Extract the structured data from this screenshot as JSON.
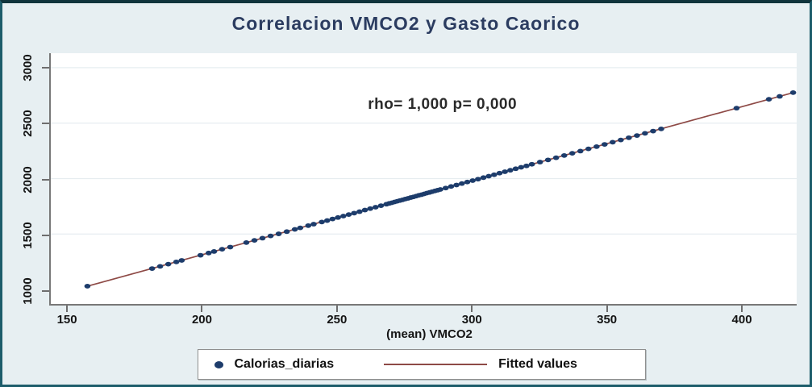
{
  "title": "Correlacion VMCO2 y Gasto Caorico",
  "chart_data": {
    "type": "scatter",
    "title": "Correlacion VMCO2 y Gasto Caorico",
    "annotation": "rho= 1,000 p= 0,000",
    "xlabel": "(mean) VMCO2",
    "ylabel": "",
    "x_ticks": [
      150,
      200,
      250,
      300,
      350,
      400
    ],
    "y_ticks": [
      1000,
      1500,
      2000,
      2500,
      3000
    ],
    "x_domain": [
      143.4,
      420.3
    ],
    "y_domain": [
      870,
      3130
    ],
    "grid": "horizontal",
    "legend_position": "bottom",
    "series": [
      {
        "name": "Calorias_diarias",
        "kind": "scatter",
        "marker": "circle",
        "color": "#1d3c6b",
        "points": [
          [
            157,
            1030
          ],
          [
            181,
            1189
          ],
          [
            184,
            1209
          ],
          [
            187,
            1229
          ],
          [
            190,
            1249
          ],
          [
            192,
            1263
          ],
          [
            199,
            1309
          ],
          [
            202,
            1329
          ],
          [
            204,
            1343
          ],
          [
            207,
            1363
          ],
          [
            210,
            1383
          ],
          [
            216,
            1423
          ],
          [
            219,
            1443
          ],
          [
            222,
            1463
          ],
          [
            225,
            1483
          ],
          [
            228,
            1502
          ],
          [
            231,
            1522
          ],
          [
            234,
            1542
          ],
          [
            236,
            1556
          ],
          [
            239,
            1576
          ],
          [
            241,
            1589
          ],
          [
            244,
            1609
          ],
          [
            246,
            1622
          ],
          [
            248,
            1636
          ],
          [
            250,
            1649
          ],
          [
            252,
            1662
          ],
          [
            254,
            1676
          ],
          [
            256,
            1689
          ],
          [
            258,
            1702
          ],
          [
            260,
            1716
          ],
          [
            262,
            1729
          ],
          [
            264,
            1742
          ],
          [
            266,
            1756
          ],
          [
            268,
            1769
          ],
          [
            269,
            1776
          ],
          [
            270,
            1782
          ],
          [
            271,
            1789
          ],
          [
            272,
            1796
          ],
          [
            273,
            1802
          ],
          [
            274,
            1809
          ],
          [
            275,
            1816
          ],
          [
            276,
            1822
          ],
          [
            277,
            1829
          ],
          [
            278,
            1835
          ],
          [
            279,
            1842
          ],
          [
            280,
            1849
          ],
          [
            281,
            1855
          ],
          [
            282,
            1862
          ],
          [
            283,
            1869
          ],
          [
            284,
            1875
          ],
          [
            285,
            1882
          ],
          [
            286,
            1889
          ],
          [
            287,
            1895
          ],
          [
            288,
            1902
          ],
          [
            290,
            1915
          ],
          [
            292,
            1929
          ],
          [
            294,
            1942
          ],
          [
            296,
            1955
          ],
          [
            298,
            1969
          ],
          [
            300,
            1982
          ],
          [
            302,
            1995
          ],
          [
            304,
            2009
          ],
          [
            306,
            2022
          ],
          [
            308,
            2035
          ],
          [
            310,
            2049
          ],
          [
            312,
            2062
          ],
          [
            314,
            2075
          ],
          [
            316,
            2089
          ],
          [
            318,
            2102
          ],
          [
            320,
            2115
          ],
          [
            322,
            2129
          ],
          [
            325,
            2149
          ],
          [
            328,
            2168
          ],
          [
            331,
            2188
          ],
          [
            334,
            2208
          ],
          [
            337,
            2228
          ],
          [
            340,
            2248
          ],
          [
            343,
            2268
          ],
          [
            346,
            2288
          ],
          [
            349,
            2308
          ],
          [
            352,
            2328
          ],
          [
            355,
            2348
          ],
          [
            358,
            2368
          ],
          [
            361,
            2388
          ],
          [
            364,
            2408
          ],
          [
            367,
            2428
          ],
          [
            370,
            2448
          ],
          [
            398,
            2635
          ],
          [
            410,
            2715
          ],
          [
            414,
            2741
          ],
          [
            419,
            2775
          ]
        ]
      },
      {
        "name": "Fitted values",
        "kind": "line",
        "color": "#8e4a46",
        "points": [
          [
            157,
            1030
          ],
          [
            419,
            2775
          ]
        ]
      }
    ]
  },
  "colors": {
    "background": "#e7eff2",
    "frame_border": "#1d5d6b",
    "plot_background": "#ffffff",
    "gridline": "#e6edf0",
    "axis": "#787878",
    "title_text": "#2b3c60",
    "marker": "#1d3c6b",
    "fit_line": "#8e4a46"
  }
}
